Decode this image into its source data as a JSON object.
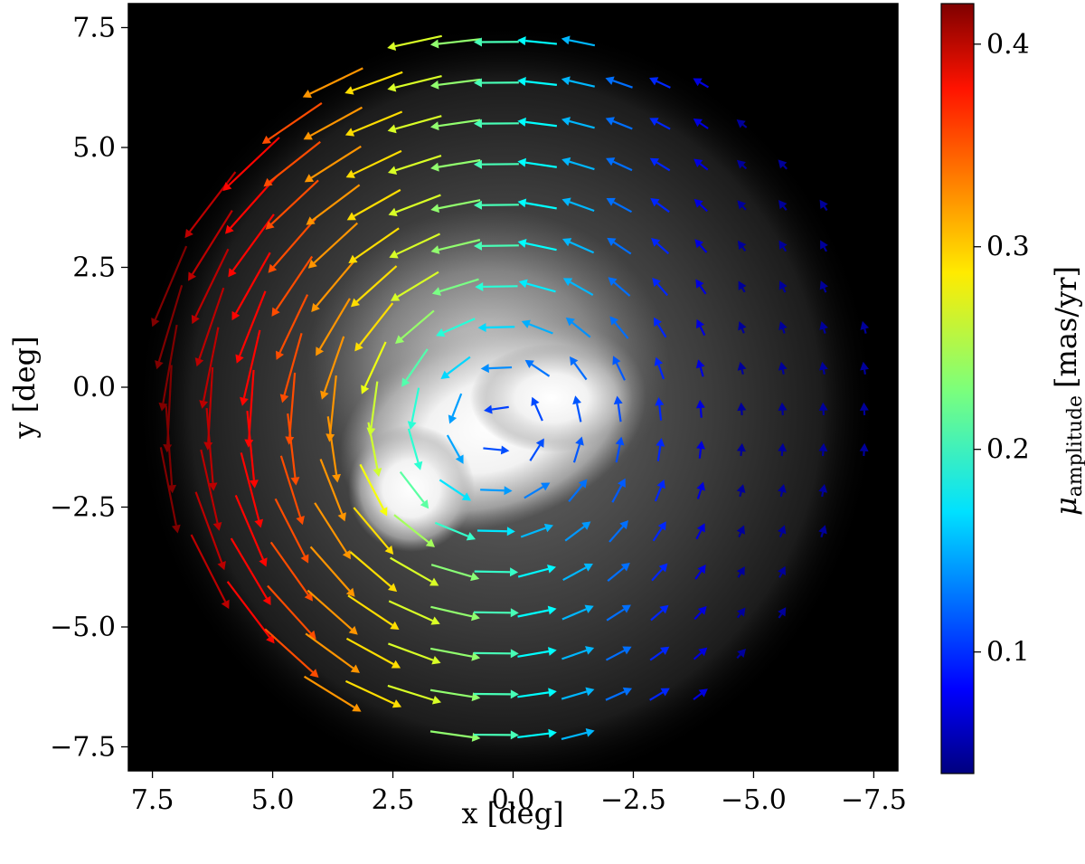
{
  "chart_data": {
    "type": "quiver",
    "background": "grayscale density map of a bright central bar and extended halo (brightest near x=-0.5 to 2, y=-2 to 0)",
    "xlabel": "x [deg]",
    "ylabel": "y [deg]",
    "xlim": [
      8.0,
      -8.0
    ],
    "ylim": [
      -8.0,
      8.0
    ],
    "x_inverted": true,
    "xticks": [
      7.5,
      5.0,
      2.5,
      0.0,
      -2.5,
      -5.0,
      -7.5
    ],
    "xtick_labels": [
      "7.5",
      "5.0",
      "2.5",
      "0.0",
      "−2.5",
      "−5.0",
      "−7.5"
    ],
    "yticks": [
      7.5,
      5.0,
      2.5,
      0.0,
      -2.5,
      -5.0,
      -7.5
    ],
    "ytick_labels": [
      "7.5",
      "5.0",
      "2.5",
      "0.0",
      "−2.5",
      "−5.0",
      "−7.5"
    ],
    "colorbar": {
      "label_symbol": "μ",
      "label_subscript": "amplitude",
      "label_units": "[mas/yr]",
      "range": [
        0.04,
        0.42
      ],
      "ticks": [
        0.1,
        0.2,
        0.3,
        0.4
      ],
      "tick_labels": [
        "0.1",
        "0.2",
        "0.3",
        "0.4"
      ],
      "colormap": "jet"
    },
    "vector_field": {
      "description": "rotating proper-motion field; center approx at x=0.3, y=-0.8; counterclockwise as drawn (up on the left/east side, down on the right/west side)",
      "grid_spacing_deg": 0.85,
      "center_x": 0.3,
      "center_y": -0.8,
      "outer_radius_deg": 8.1,
      "amplitude_peak_x": 7.0,
      "amplitude_min_x": -5.0,
      "amplitude_range": [
        0.04,
        0.42
      ]
    }
  }
}
